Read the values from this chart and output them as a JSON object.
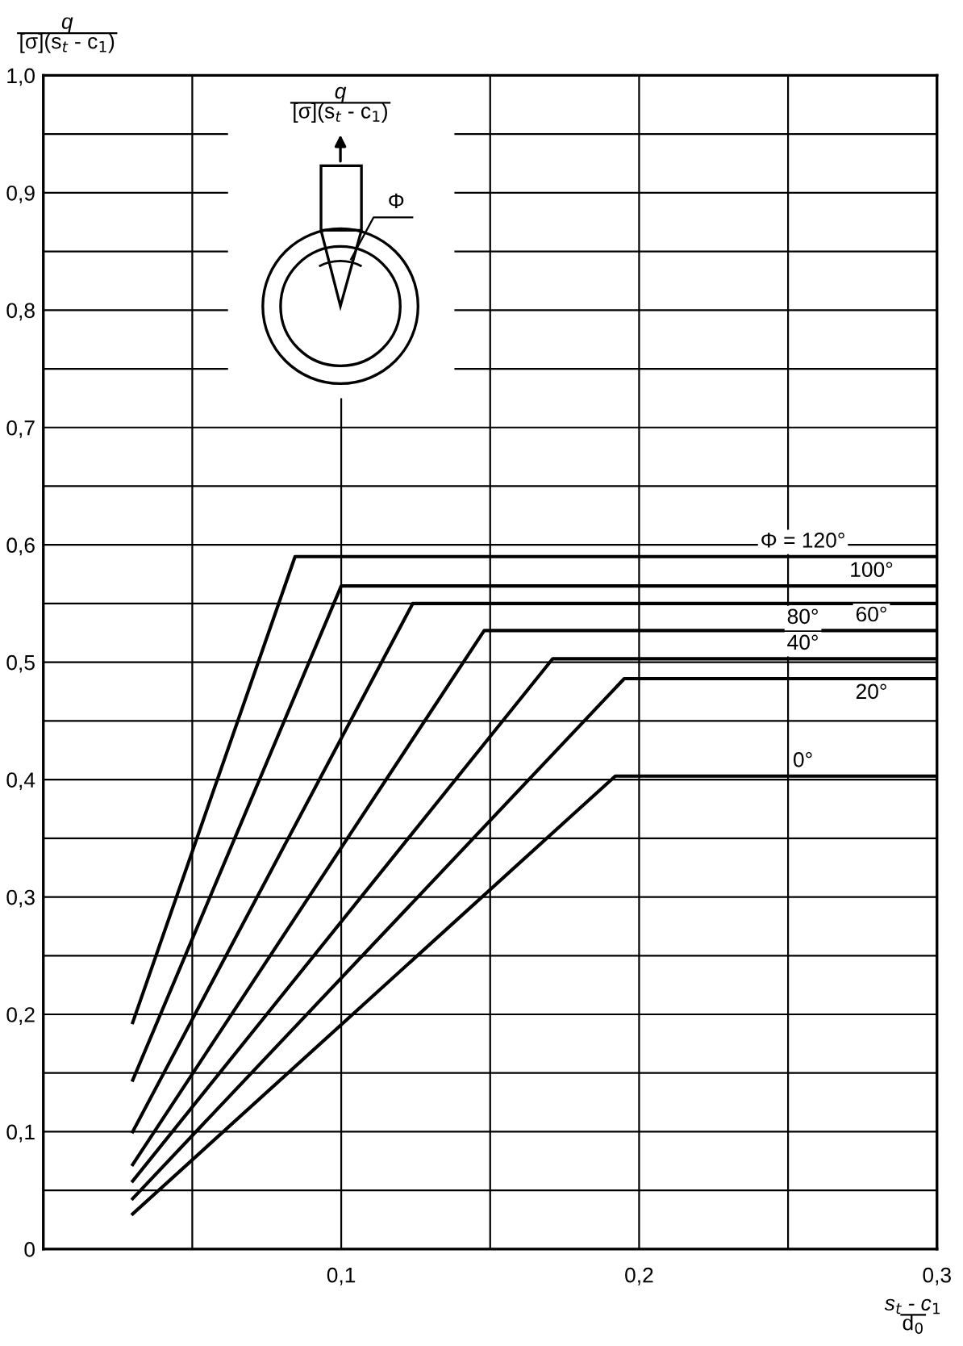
{
  "chart_data": {
    "type": "line",
    "xlabel": "s$_{t}$ - c$_{1}$\nd$_{0}$",
    "ylabel": "q\n[σ](s$_{t}$ - c$_{1}$)",
    "annotations": [
      "q\n[σ](s$_{t}$ - c$_{1}$)",
      "Φ"
    ],
    "series": [
      {
        "name": "0°",
        "color": "#000000",
        "x": [
          0.03,
          0.192,
          0.3
        ],
        "values": [
          0.03,
          0.403,
          0.403
        ]
      },
      {
        "name": "20°",
        "color": "#000000",
        "x": [
          0.03,
          0.195,
          0.3
        ],
        "values": [
          0.043,
          0.486,
          0.486
        ]
      },
      {
        "name": "40°",
        "color": "#000000",
        "x": [
          0.03,
          0.171,
          0.3
        ],
        "values": [
          0.058,
          0.503,
          0.503
        ]
      },
      {
        "name": "60°",
        "color": "#000000",
        "x": [
          0.03,
          0.148,
          0.3
        ],
        "values": [
          0.072,
          0.527,
          0.527
        ]
      },
      {
        "name": "80°",
        "color": "#000000",
        "x": [
          0.03,
          0.124,
          0.3
        ],
        "values": [
          0.1,
          0.55,
          0.55
        ]
      },
      {
        "name": "100°",
        "color": "#000000",
        "x": [
          0.03,
          0.1,
          0.3
        ],
        "values": [
          0.144,
          0.565,
          0.565
        ]
      },
      {
        "name": "Φ = 120°",
        "color": "#000000",
        "x": [
          0.03,
          0.0845,
          0.3
        ],
        "values": [
          0.193,
          0.59,
          0.59
        ]
      }
    ],
    "xlim": [
      0,
      0.3
    ],
    "ylim": [
      0,
      1.0
    ],
    "xticks": [
      {
        "value": 0,
        "label": null
      },
      {
        "value": 0.05,
        "label": null
      },
      {
        "value": 0.1,
        "label": "0,1"
      },
      {
        "value": 0.15,
        "label": null
      },
      {
        "value": 0.2,
        "label": "0,2"
      },
      {
        "value": 0.25,
        "label": null
      },
      {
        "value": 0.3,
        "label": "0,3"
      }
    ],
    "yticks": [
      0,
      {
        "value": 0.05,
        "label": null
      },
      {
        "value": 0.1,
        "label": "0,1"
      },
      {
        "value": 0.15,
        "label": null
      },
      {
        "value": 0.2,
        "label": "0,2"
      },
      {
        "value": 0.25,
        "label": null
      },
      {
        "value": 0.3,
        "label": "0,3"
      },
      {
        "value": 0.35,
        "label": null
      },
      {
        "value": 0.4,
        "label": "0,4"
      },
      {
        "value": 0.45,
        "label": null
      },
      {
        "value": 0.5,
        "label": "0,5"
      },
      {
        "value": 0.55,
        "label": null
      },
      {
        "value": 0.6,
        "label": "0,6"
      },
      {
        "value": 0.65,
        "label": null
      },
      {
        "value": 0.7,
        "label": "0,7"
      },
      {
        "value": 0.75,
        "label": null
      },
      {
        "value": 0.8,
        "label": "0,8"
      },
      {
        "value": 0.85,
        "label": null
      },
      {
        "value": 0.9,
        "label": "0,9"
      },
      {
        "value": 0.95,
        "label": null
      },
      {
        "value": 1.0,
        "label": "1,0"
      }
    ],
    "grid": true,
    "marker": "none",
    "line_style": "solid"
  }
}
